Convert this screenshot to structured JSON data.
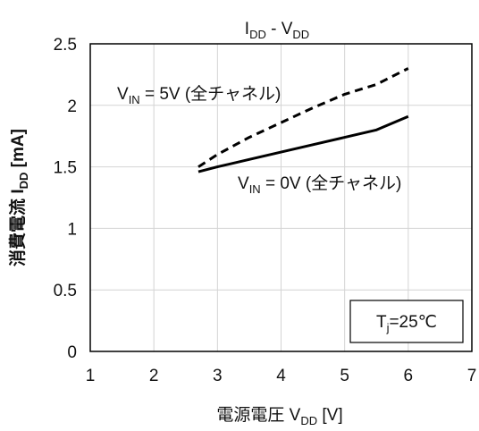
{
  "chart_data": {
    "type": "line",
    "title": {
      "main": "I",
      "main_sub": "DD",
      "sep": " - V",
      "sep_sub": "DD"
    },
    "xlabel": {
      "main": "電源電圧  V",
      "sub": "DD",
      "unit": "  [V]"
    },
    "ylabel": {
      "main": "消費電流  I",
      "sub": "DD",
      "unit": "  [mA]"
    },
    "xlim": [
      1,
      7
    ],
    "ylim": [
      0,
      2.5
    ],
    "x_ticks": [
      "1",
      "2",
      "3",
      "4",
      "5",
      "6",
      "7"
    ],
    "y_ticks": [
      "0",
      "0.5",
      "1",
      "1.5",
      "2",
      "2.5"
    ],
    "grid": true,
    "series": [
      {
        "style": "dashed",
        "color": "#000000",
        "label": {
          "pre": "V",
          "sub": "IN",
          "post": " = 5V (全チャネル)"
        },
        "x": [
          2.7,
          3,
          3.5,
          4,
          4.5,
          5,
          5.5,
          6
        ],
        "y": [
          1.5,
          1.6,
          1.74,
          1.86,
          1.98,
          2.09,
          2.17,
          2.3
        ]
      },
      {
        "style": "solid",
        "color": "#000000",
        "label": {
          "pre": "V",
          "sub": "IN",
          "post": " = 0V (全チャネル)"
        },
        "x": [
          2.7,
          3,
          3.5,
          4,
          4.5,
          5,
          5.5,
          6
        ],
        "y": [
          1.46,
          1.5,
          1.56,
          1.62,
          1.68,
          1.74,
          1.8,
          1.91
        ]
      }
    ],
    "annotation": {
      "main": "T",
      "sub": "j",
      "post": "=25℃"
    }
  }
}
